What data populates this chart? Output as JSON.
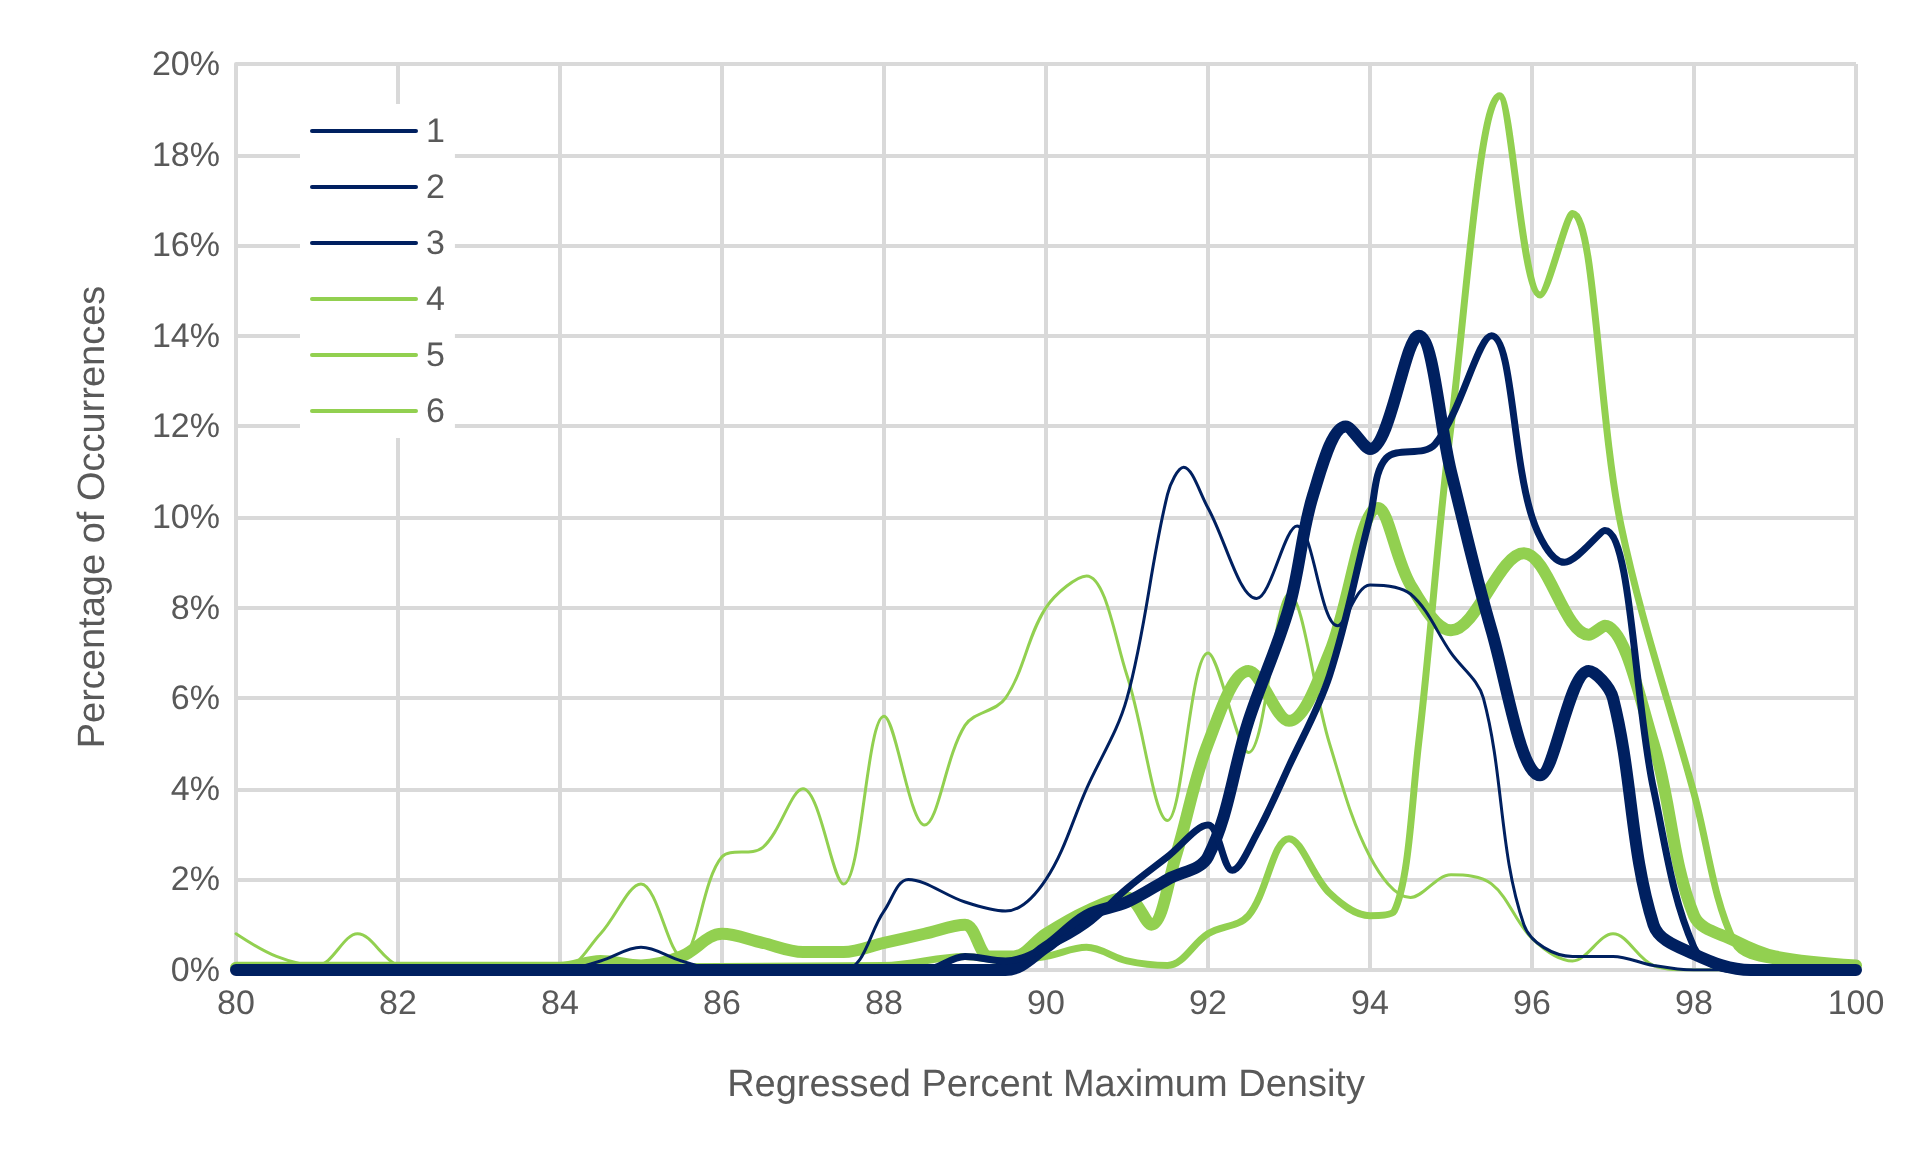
{
  "chart_data": {
    "type": "line",
    "xlabel": "Regressed Percent Maximum Density",
    "ylabel": "Percentage of Occurrences",
    "xlim": [
      80,
      100
    ],
    "xticks": [
      80,
      82,
      84,
      86,
      88,
      90,
      92,
      94,
      96,
      98,
      100
    ],
    "ylim": [
      0,
      20
    ],
    "yticks": [
      {
        "value": 0,
        "label": "0%"
      },
      {
        "value": 2,
        "label": "2%"
      },
      {
        "value": 4,
        "label": "4%"
      },
      {
        "value": 6,
        "label": "6%"
      },
      {
        "value": 8,
        "label": "8%"
      },
      {
        "value": 10,
        "label": "10%"
      },
      {
        "value": 12,
        "label": "12%"
      },
      {
        "value": 14,
        "label": "14%"
      },
      {
        "value": 16,
        "label": "16%"
      },
      {
        "value": 18,
        "label": "18%"
      },
      {
        "value": 20,
        "label": "20%"
      }
    ],
    "grid": true,
    "legend": "top left",
    "marker": "none",
    "line_style": "solid",
    "series": [
      {
        "name": "1",
        "color": "#002060",
        "x": [
          80,
          84,
          84.5,
          85,
          85.5,
          86,
          87.5,
          88,
          88.3,
          89,
          89.5,
          90,
          90.5,
          91,
          91.5,
          91.7,
          92,
          92.6,
          93.1,
          93.6,
          94,
          94.5,
          95,
          95.4,
          95.9,
          96.5,
          97,
          97.5,
          98,
          100
        ],
        "values": [
          0,
          0,
          0.2,
          0.5,
          0.2,
          0,
          0,
          1.3,
          2.0,
          1.5,
          1.3,
          2.0,
          4.0,
          6.0,
          10.5,
          11.1,
          10.2,
          8.2,
          9.8,
          7.6,
          8.5,
          8.3,
          7.0,
          6.0,
          1.0,
          0.3,
          0.3,
          0.1,
          0,
          0
        ]
      },
      {
        "name": "2",
        "color": "#002060",
        "x": [
          80,
          88.5,
          89,
          89.5,
          90,
          90.5,
          91,
          91.5,
          92,
          92.3,
          92.6,
          93,
          93.5,
          94,
          94.2,
          94.8,
          95.5,
          96,
          96.4,
          96.9,
          97.5,
          98,
          98.5,
          100
        ],
        "values": [
          0,
          0,
          0.3,
          0.2,
          0.5,
          1.0,
          1.8,
          2.5,
          3.2,
          2.2,
          3.0,
          4.5,
          6.5,
          10.0,
          11.3,
          11.6,
          14.0,
          10.0,
          9.0,
          9.7,
          4.0,
          0.5,
          0,
          0
        ]
      },
      {
        "name": "3",
        "color": "#002060",
        "x": [
          80,
          89.5,
          90,
          90.5,
          91,
          91.5,
          92,
          92.5,
          93,
          93.3,
          93.7,
          94,
          94.6,
          95,
          95.5,
          96.1,
          96.7,
          97,
          97.5,
          98,
          98.7,
          100
        ],
        "values": [
          0,
          0,
          0.5,
          1.2,
          1.5,
          2.0,
          2.5,
          5.5,
          8.0,
          10.5,
          12.0,
          11.5,
          14.0,
          11.0,
          7.5,
          4.3,
          6.6,
          6.0,
          1.0,
          0.35,
          0,
          0
        ]
      },
      {
        "name": "4",
        "color": "#92d050",
        "x": [
          80,
          84,
          84.5,
          85,
          85.5,
          86,
          86.5,
          87,
          87.5,
          88,
          88.5,
          89,
          89.3,
          89.6,
          90,
          90.5,
          91,
          91.3,
          91.6,
          92,
          92.5,
          93,
          93.5,
          94.1,
          94.5,
          95,
          95.9,
          96.7,
          96.9,
          97.5,
          98,
          98.5,
          99,
          100
        ],
        "values": [
          0.05,
          0.05,
          0.2,
          0.1,
          0.3,
          0.8,
          0.6,
          0.4,
          0.4,
          0.6,
          0.8,
          1.0,
          0.3,
          0.3,
          0.8,
          1.3,
          1.6,
          1.0,
          2.5,
          5.0,
          6.6,
          5.5,
          7.0,
          10.2,
          8.5,
          7.5,
          9.2,
          7.4,
          7.6,
          5.0,
          1.2,
          0.65,
          0.3,
          0.1
        ]
      },
      {
        "name": "5",
        "color": "#92d050",
        "x": [
          80,
          88,
          89,
          89.5,
          90,
          90.5,
          91,
          91.5,
          92,
          92.5,
          93,
          93.5,
          94,
          94.3,
          94.6,
          95,
          95.6,
          96.1,
          96.5,
          97.1,
          98,
          98.5,
          99,
          100
        ],
        "values": [
          0.05,
          0.1,
          0.3,
          0.2,
          0.3,
          0.5,
          0.2,
          0.1,
          0.8,
          1.2,
          2.9,
          1.7,
          1.2,
          1.3,
          5.0,
          12.0,
          19.3,
          14.9,
          16.7,
          9.8,
          3.9,
          0.6,
          0.2,
          0.1
        ]
      },
      {
        "name": "6",
        "color": "#92d050",
        "x": [
          80,
          80.5,
          81,
          81.5,
          82,
          82.5,
          84,
          84.5,
          85,
          85.5,
          86,
          86.5,
          87,
          87.5,
          88,
          88.5,
          89,
          89.5,
          90,
          90.5,
          91,
          91.5,
          92,
          92.5,
          93,
          93.5,
          94,
          94.5,
          95,
          95.5,
          96,
          96.5,
          97,
          97.5,
          98,
          100
        ],
        "values": [
          0.8,
          0.3,
          0.1,
          0.8,
          0.1,
          0,
          0,
          0.8,
          1.9,
          0.3,
          2.5,
          2.7,
          4.0,
          1.9,
          5.6,
          3.2,
          5.4,
          6.0,
          8.0,
          8.7,
          6.5,
          3.3,
          7.0,
          4.8,
          8.3,
          5.0,
          2.5,
          1.6,
          2.1,
          1.9,
          0.7,
          0.2,
          0.8,
          0.1,
          0,
          0
        ]
      }
    ]
  }
}
